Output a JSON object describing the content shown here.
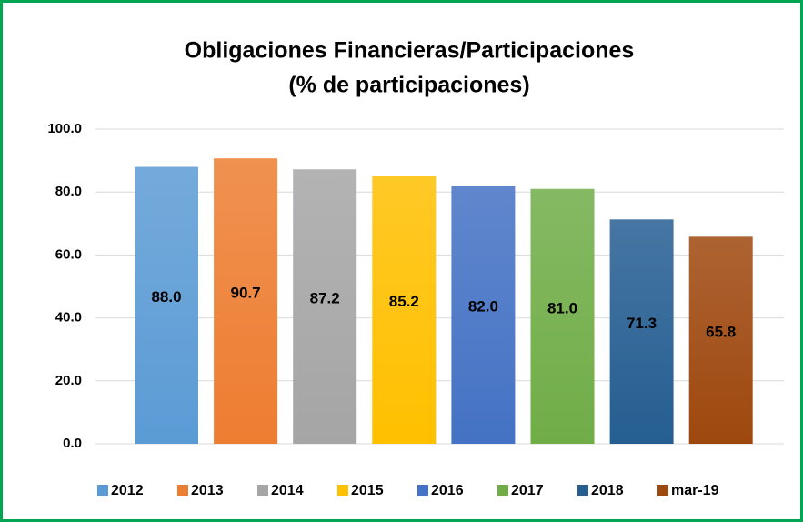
{
  "chart_data": {
    "type": "bar",
    "title": "Obligaciones Financieras/Participaciones",
    "subtitle": "(% de participaciones)",
    "series": [
      {
        "name": "2012",
        "color": "#5b9bd5",
        "values": [
          88.0
        ],
        "value_labels": [
          "88.0"
        ]
      },
      {
        "name": "2013",
        "color": "#ed7d31",
        "values": [
          90.7
        ],
        "value_labels": [
          "90.7"
        ]
      },
      {
        "name": "2014",
        "color": "#a5a5a5",
        "values": [
          87.2
        ],
        "value_labels": [
          "87.2"
        ]
      },
      {
        "name": "2015",
        "color": "#ffc000",
        "values": [
          85.2
        ],
        "value_labels": [
          "85.2"
        ]
      },
      {
        "name": "2016",
        "color": "#4472c4",
        "values": [
          82.0
        ],
        "value_labels": [
          "82.0"
        ]
      },
      {
        "name": "2017",
        "color": "#70ad47",
        "values": [
          81.0
        ],
        "value_labels": [
          "81.0"
        ]
      },
      {
        "name": "2018",
        "color": "#255e91",
        "values": [
          71.3
        ],
        "value_labels": [
          "71.3"
        ]
      },
      {
        "name": "mar-19",
        "color": "#9e480e",
        "values": [
          65.8
        ],
        "value_labels": [
          "65.8"
        ]
      }
    ],
    "ylim": [
      0,
      100
    ],
    "yticks": [
      {
        "value": 0,
        "label": "0.0"
      },
      {
        "value": 20,
        "label": "20.0"
      },
      {
        "value": 40,
        "label": "40.0"
      },
      {
        "value": 60,
        "label": "60.0"
      },
      {
        "value": 80,
        "label": "80.0"
      },
      {
        "value": 100,
        "label": "100.0"
      }
    ],
    "grid": true,
    "legend": "bottom"
  }
}
